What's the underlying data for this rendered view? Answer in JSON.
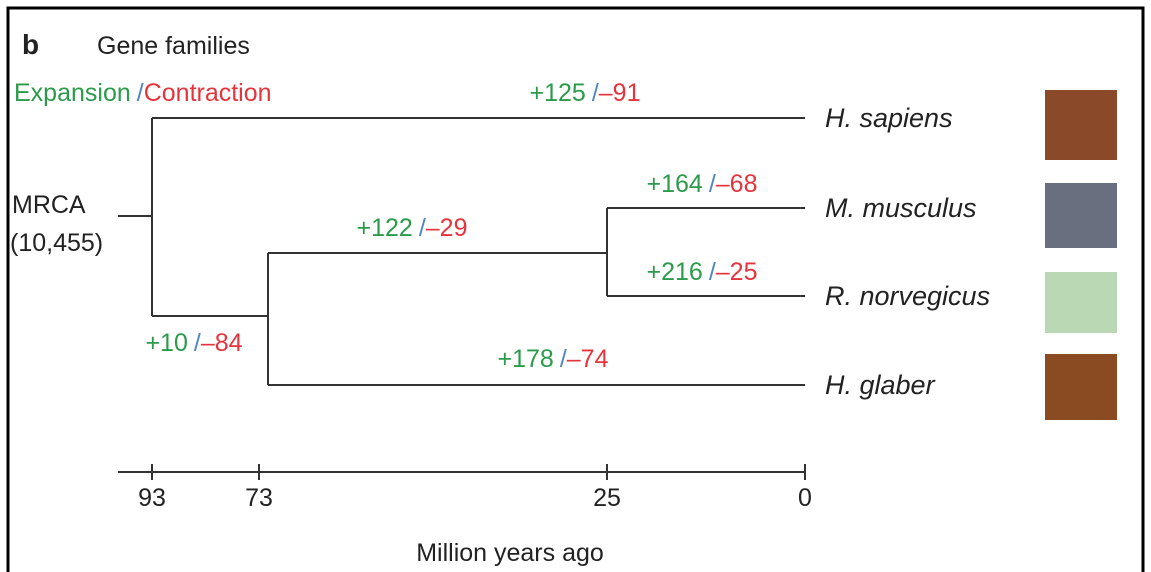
{
  "panel": "b",
  "title": "Gene families",
  "legend": {
    "expansion": "Expansion",
    "separator": "/",
    "contraction": "Contraction"
  },
  "root": {
    "label": "MRCA",
    "families": "(10,455)"
  },
  "branches": [
    {
      "gain": "+125",
      "loss": "–91"
    },
    {
      "gain": "+164",
      "loss": "–68"
    },
    {
      "gain": "+122",
      "loss": "–29"
    },
    {
      "gain": "+216",
      "loss": "–25"
    },
    {
      "gain": "+10",
      "loss": "–84"
    },
    {
      "gain": "+178",
      "loss": "–74"
    }
  ],
  "species": [
    "H. sapiens",
    "M. musculus",
    "R. norvegicus",
    "H. glaber"
  ],
  "axis": {
    "ticks": [
      93,
      73,
      25,
      0
    ],
    "label": "Million years ago"
  }
}
